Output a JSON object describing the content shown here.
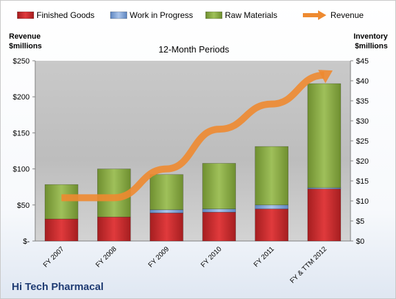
{
  "chart_data": {
    "type": "bar",
    "title": "12-Month Periods",
    "ylabel_left": [
      "Revenue",
      "$millions"
    ],
    "ylabel_right": [
      "Inventory",
      "$millions"
    ],
    "categories": [
      "FY 2007",
      "FY 2008",
      "FY 2009",
      "FY 2010",
      "FY 2011",
      "FY & TTM 2012"
    ],
    "stacked": true,
    "series": [
      {
        "name": "Finished Goods",
        "axis": "right",
        "color": "#c0282a",
        "values": [
          5.5,
          6.0,
          7.0,
          7.2,
          8.0,
          13.0
        ]
      },
      {
        "name": "Work in Progress",
        "axis": "right",
        "color": "#7ea4d8",
        "values": [
          0.0,
          0.0,
          0.8,
          0.8,
          1.0,
          0.3
        ]
      },
      {
        "name": "Raw Materials",
        "axis": "right",
        "color": "#8fb04a",
        "values": [
          8.6,
          12.0,
          8.8,
          11.4,
          14.6,
          26.0
        ]
      },
      {
        "name": "Revenue",
        "axis": "left",
        "type": "line",
        "color": "#ee8a30",
        "values": [
          60,
          60,
          100,
          155,
          190,
          230
        ]
      }
    ],
    "ylim_left": [
      0,
      250
    ],
    "ylim_right": [
      0,
      45
    ],
    "yticks_left": [
      "$-",
      "$50",
      "$100",
      "$150",
      "$200",
      "$250"
    ],
    "yticks_right": [
      "$0",
      "$5",
      "$10",
      "$15",
      "$20",
      "$25",
      "$30",
      "$35",
      "$40",
      "$45"
    ],
    "grid": false,
    "legend": "top"
  },
  "company_name": "Hi Tech Pharmacal"
}
